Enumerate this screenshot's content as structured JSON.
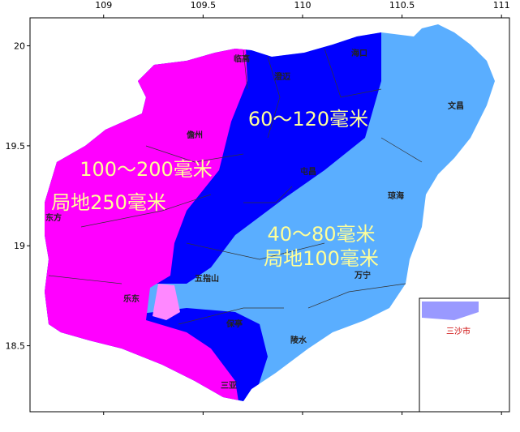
{
  "map": {
    "xlim": [
      108.63,
      111.04
    ],
    "ylim": [
      18.17,
      20.14
    ],
    "xticks": [
      109,
      109.5,
      110,
      110.5,
      111
    ],
    "yticks": [
      20,
      19.5,
      19,
      18.5
    ],
    "regions": [
      {
        "label": "60～120毫米",
        "color": "#0000ff"
      },
      {
        "label": "100～200毫米",
        "sublabel": "局地250毫米",
        "color": "#ff00ff"
      },
      {
        "label": "40～80毫米",
        "sublabel": "局地100毫米",
        "color": "#5aaeff"
      }
    ],
    "places": [
      "临高",
      "澄迈",
      "海口",
      "文昌",
      "儋州",
      "屯昌",
      "琼海",
      "东方",
      "五指山",
      "万宁",
      "乐东",
      "保亭",
      "陵水",
      "三亚",
      "三沙市"
    ]
  }
}
